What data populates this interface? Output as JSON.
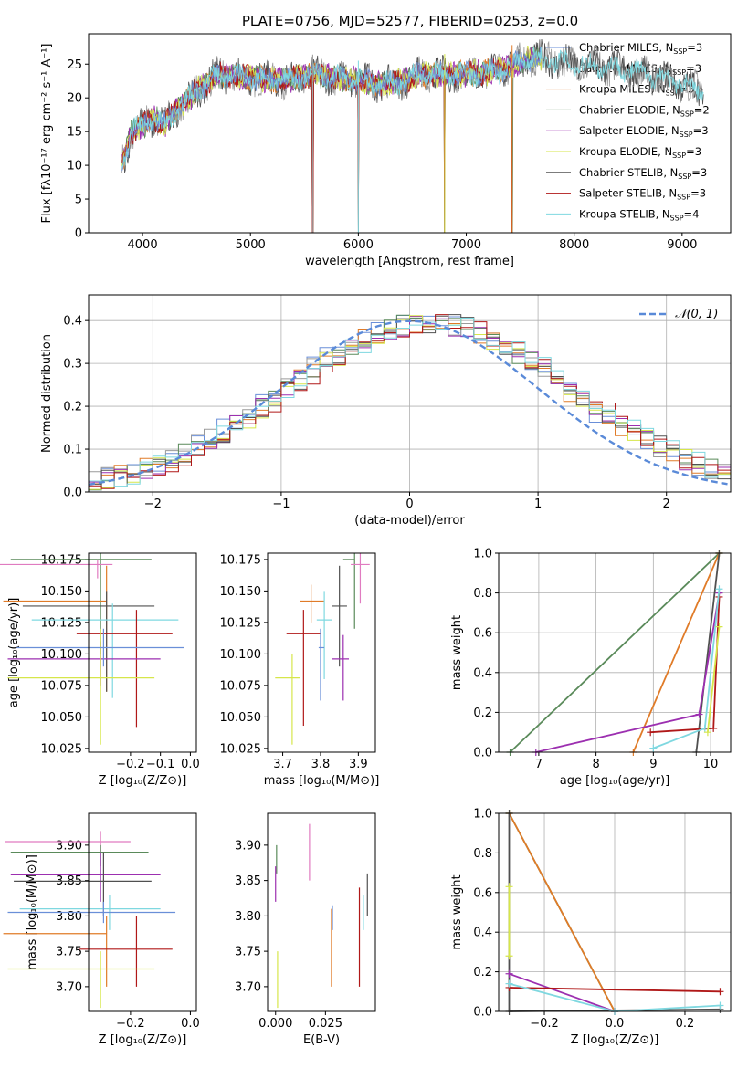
{
  "colors": {
    "Chabrier MILES": "#6a8fd8",
    "Salpeter MILES": "#9a9a9a",
    "Kroupa MILES": "#e07b28",
    "Chabrier ELODIE": "#5a8a5a",
    "Salpeter ELODIE": "#9c2fb0",
    "Kroupa ELODIE": "#d6e64a",
    "Chabrier STELIB": "#505050",
    "Salpeter STELIB": "#b01818",
    "Kroupa STELIB": "#7fd8e0",
    "pink": "#e07bc0",
    "gauss": "#5a8ad8"
  },
  "chart_data": [
    {
      "id": "spectrum",
      "type": "line",
      "title": "PLATE=0756, MJD=52577, FIBERID=0253, z=0.0",
      "xlabel": "wavelength [Angstrom, rest frame]",
      "ylabel": "Flux [fλ10⁻¹⁷ erg cm⁻² s⁻¹ A⁻¹]",
      "xlim": [
        3500,
        9450
      ],
      "ylim": [
        0,
        29.5
      ],
      "xticks": [
        4000,
        5000,
        6000,
        7000,
        8000,
        9000
      ],
      "yticks": [
        0,
        5,
        10,
        15,
        20,
        25
      ],
      "legend_position": "top-right",
      "legend": [
        {
          "base": "Chabrier MILES, N",
          "sub": "SSP",
          "tail": "=3",
          "color": "#6a8fd8"
        },
        {
          "base": "Salpeter MILES, N",
          "sub": "SSP",
          "tail": "=3",
          "color": "#9a9a9a"
        },
        {
          "base": "Kroupa MILES, N",
          "sub": "SSP",
          "tail": "=3",
          "color": "#e07b28"
        },
        {
          "base": "Chabrier ELODIE, N",
          "sub": "SSP",
          "tail": "=2",
          "color": "#5a8a5a"
        },
        {
          "base": "Salpeter ELODIE, N",
          "sub": "SSP",
          "tail": "=3",
          "color": "#9c2fb0"
        },
        {
          "base": "Kroupa ELODIE, N",
          "sub": "SSP",
          "tail": "=3",
          "color": "#d6e64a"
        },
        {
          "base": "Chabrier STELIB, N",
          "sub": "SSP",
          "tail": "=3",
          "color": "#505050"
        },
        {
          "base": "Salpeter STELIB, N",
          "sub": "SSP",
          "tail": "=3",
          "color": "#b01818"
        },
        {
          "base": "Kroupa STELIB, N",
          "sub": "SSP",
          "tail": "=4",
          "color": "#7fd8e0"
        }
      ],
      "continuum": {
        "x": [
          3800,
          3900,
          4000,
          4100,
          4200,
          4300,
          4500,
          4700,
          5000,
          5300,
          5600,
          6000,
          6300,
          6600,
          7000,
          7300,
          7600,
          7800,
          8000,
          8400,
          8800,
          9200
        ],
        "y": [
          10,
          15,
          16,
          17,
          16,
          18,
          21,
          23.5,
          23,
          22.5,
          23.5,
          22.5,
          22,
          23.5,
          23.5,
          24,
          26,
          25.5,
          25,
          24.5,
          23,
          21
        ]
      },
      "dips": [
        {
          "x": 5577,
          "y": 0
        },
        {
          "x": 6000,
          "y": 0
        },
        {
          "x": 6800,
          "y": 0
        },
        {
          "x": 7425,
          "y": 0
        }
      ]
    },
    {
      "id": "residuals",
      "type": "line",
      "xlabel": "(data-model)/error",
      "ylabel": "Normed distribution",
      "xlim": [
        -2.5,
        2.5
      ],
      "ylim": [
        0,
        0.46
      ],
      "xticks": [
        -2,
        -1,
        0,
        1,
        2
      ],
      "yticks": [
        0.0,
        0.1,
        0.2,
        0.3,
        0.4
      ],
      "grid": true,
      "legend_position": "top-right",
      "legend_label": "𝒩(0, 1)",
      "series": [
        {
          "name": "N(0,1)",
          "style": "dashed",
          "color": "#5a8ad8",
          "function": "gaussian",
          "mu": 0,
          "sigma": 1
        }
      ],
      "histogram_bin_width": 0.1
    },
    {
      "id": "age-vs-Z",
      "type": "scatter",
      "xlabel": "Z [log₁₀(Z/Z⊙)]",
      "ylabel": "age  [log₁₀(age/yr)]",
      "xlim": [
        -0.34,
        0.02
      ],
      "ylim": [
        10.022,
        10.18
      ],
      "xticks": [
        -0.2,
        -0.1,
        0.0
      ],
      "xticklabels": [
        "−0.2",
        "−0.1",
        "0.0"
      ],
      "yticks": [
        10.025,
        10.05,
        10.075,
        10.1,
        10.125,
        10.15,
        10.175
      ],
      "points": [
        {
          "color": "#5a8a5a",
          "x": -0.3,
          "y": 10.175,
          "xerr": [
            0.3,
            0.17
          ],
          "yerr": [
            10.1,
            10.18
          ]
        },
        {
          "color": "#e07bc0",
          "x": -0.31,
          "y": 10.171,
          "xerr": [
            0.33,
            0.05
          ],
          "yerr": [
            10.16,
            10.175
          ]
        },
        {
          "color": "#e07b28",
          "x": -0.28,
          "y": 10.142,
          "xerr": [
            0.345,
            0.0
          ],
          "yerr": [
            10.07,
            10.17
          ]
        },
        {
          "color": "#505050",
          "x": -0.28,
          "y": 10.138,
          "xerr": [
            0.28,
            0.16
          ],
          "yerr": [
            10.07,
            10.15
          ]
        },
        {
          "color": "#7fd8e0",
          "x": -0.26,
          "y": 10.127,
          "xerr": [
            0.27,
            0.22
          ],
          "yerr": [
            10.065,
            10.14
          ]
        },
        {
          "color": "#b01818",
          "x": -0.18,
          "y": 10.116,
          "xerr": [
            0.2,
            0.12
          ],
          "yerr": [
            10.042,
            10.135
          ]
        },
        {
          "color": "#9c2fb0",
          "x": -0.3,
          "y": 10.096,
          "xerr": [
            0.31,
            0.2
          ],
          "yerr": [
            10.075,
            10.11
          ]
        },
        {
          "color": "#d6e64a",
          "x": -0.3,
          "y": 10.081,
          "xerr": [
            0.31,
            0.18
          ],
          "yerr": [
            10.028,
            10.12
          ]
        },
        {
          "color": "#6a8fd8",
          "x": -0.29,
          "y": 10.105,
          "xerr": [
            0.29,
            0.27
          ],
          "yerr": [
            10.09,
            10.12
          ]
        }
      ]
    },
    {
      "id": "age-vs-mass",
      "type": "scatter",
      "xlabel": "mass [log₁₀(M/M⊙)]",
      "xlim": [
        3.66,
        3.945
      ],
      "ylim": [
        10.022,
        10.18
      ],
      "xticks": [
        3.7,
        3.8,
        3.9
      ],
      "yticks": [
        10.025,
        10.05,
        10.075,
        10.1,
        10.125,
        10.15,
        10.175
      ],
      "points": [
        {
          "color": "#5a8a5a",
          "x": 3.89,
          "y": 10.175,
          "xerr": [
            3.86,
            3.89
          ],
          "yerr": [
            10.12,
            10.18
          ]
        },
        {
          "color": "#e07bc0",
          "x": 3.905,
          "y": 10.171,
          "xerr": [
            3.88,
            3.93
          ],
          "yerr": [
            10.14,
            10.18
          ]
        },
        {
          "color": "#e07b28",
          "x": 3.775,
          "y": 10.142,
          "xerr": [
            3.745,
            3.81
          ],
          "yerr": [
            10.125,
            10.155
          ]
        },
        {
          "color": "#505050",
          "x": 3.85,
          "y": 10.138,
          "xerr": [
            3.83,
            3.87
          ],
          "yerr": [
            10.09,
            10.17
          ]
        },
        {
          "color": "#7fd8e0",
          "x": 3.81,
          "y": 10.127,
          "xerr": [
            3.79,
            3.83
          ],
          "yerr": [
            10.08,
            10.15
          ]
        },
        {
          "color": "#b01818",
          "x": 3.755,
          "y": 10.116,
          "xerr": [
            3.71,
            3.8
          ],
          "yerr": [
            10.043,
            10.135
          ]
        },
        {
          "color": "#9c2fb0",
          "x": 3.86,
          "y": 10.096,
          "xerr": [
            3.83,
            3.875
          ],
          "yerr": [
            10.063,
            10.115
          ]
        },
        {
          "color": "#d6e64a",
          "x": 3.725,
          "y": 10.081,
          "xerr": [
            3.68,
            3.745
          ],
          "yerr": [
            10.028,
            10.1
          ]
        },
        {
          "color": "#6a8fd8",
          "x": 3.8,
          "y": 10.105,
          "xerr": [
            3.795,
            3.81
          ],
          "yerr": [
            10.063,
            10.12
          ]
        }
      ]
    },
    {
      "id": "mass-weight-vs-age",
      "type": "line",
      "xlabel": "age  [log₁₀(age/yr)]",
      "ylabel": "mass weight",
      "xlim": [
        6.3,
        10.35
      ],
      "ylim": [
        0,
        1.0
      ],
      "xticks": [
        7,
        8,
        9,
        10
      ],
      "yticks": [
        0.0,
        0.2,
        0.4,
        0.6,
        0.8,
        1.0
      ],
      "grid": true,
      "series": [
        {
          "name": "Chabrier ELODIE",
          "color": "#5a8a5a",
          "x": [
            6.5,
            10.15
          ],
          "y": [
            0.0,
            1.0
          ]
        },
        {
          "name": "Kroupa MILES",
          "color": "#e07b28",
          "x": [
            8.65,
            10.15
          ],
          "y": [
            0.0,
            1.0
          ]
        },
        {
          "name": "Chabrier STELIB",
          "color": "#505050",
          "x": [
            9.75,
            10.15
          ],
          "y": [
            0.0,
            1.0
          ]
        },
        {
          "name": "Salpeter ELODIE",
          "color": "#9c2fb0",
          "x": [
            6.95,
            9.8,
            10.15
          ],
          "y": [
            0.0,
            0.19,
            0.8
          ]
        },
        {
          "name": "Salpeter STELIB",
          "color": "#b01818",
          "x": [
            8.95,
            10.05,
            10.15
          ],
          "y": [
            0.1,
            0.12,
            0.78
          ]
        },
        {
          "name": "Kroupa STELIB",
          "color": "#7fd8e0",
          "x": [
            9.0,
            9.9,
            10.15
          ],
          "y": [
            0.02,
            0.12,
            0.82
          ]
        },
        {
          "name": "Kroupa ELODIE",
          "color": "#d6e64a",
          "x": [
            9.95,
            10.15
          ],
          "y": [
            0.1,
            0.63
          ]
        }
      ]
    },
    {
      "id": "mass-vs-Z",
      "type": "scatter",
      "xlabel": "Z [log₁₀(Z/Z⊙)]",
      "ylabel": "mass [log₁₀(M/M⊙)]",
      "xlim": [
        -0.34,
        0.02
      ],
      "ylim": [
        3.665,
        3.945
      ],
      "xticks": [
        -0.2,
        0.0
      ],
      "xticklabels": [
        "−0.2",
        "0.0"
      ],
      "yticks": [
        3.7,
        3.75,
        3.8,
        3.85,
        3.9
      ],
      "points": [
        {
          "color": "#e07bc0",
          "x": -0.3,
          "y": 3.905,
          "xerr": [
            0.32,
            0.1
          ],
          "yerr": [
            3.89,
            3.92
          ]
        },
        {
          "color": "#5a8a5a",
          "x": -0.3,
          "y": 3.89,
          "xerr": [
            0.3,
            0.16
          ],
          "yerr": [
            3.87,
            3.9
          ]
        },
        {
          "color": "#9c2fb0",
          "x": -0.3,
          "y": 3.858,
          "xerr": [
            0.3,
            0.2
          ],
          "yerr": [
            3.82,
            3.89
          ]
        },
        {
          "color": "#505050",
          "x": -0.29,
          "y": 3.849,
          "xerr": [
            0.3,
            0.16
          ],
          "yerr": [
            3.8,
            3.89
          ]
        },
        {
          "color": "#7fd8e0",
          "x": -0.27,
          "y": 3.81,
          "xerr": [
            0.3,
            0.17
          ],
          "yerr": [
            3.78,
            3.83
          ]
        },
        {
          "color": "#6a8fd8",
          "x": -0.29,
          "y": 3.805,
          "xerr": [
            0.32,
            0.24
          ],
          "yerr": [
            3.79,
            3.82
          ]
        },
        {
          "color": "#e07b28",
          "x": -0.28,
          "y": 3.775,
          "xerr": [
            0.345,
            0.0
          ],
          "yerr": [
            3.7,
            3.8
          ]
        },
        {
          "color": "#b01818",
          "x": -0.18,
          "y": 3.753,
          "xerr": [
            0.19,
            0.12
          ],
          "yerr": [
            3.7,
            3.8
          ]
        },
        {
          "color": "#d6e64a",
          "x": -0.3,
          "y": 3.725,
          "xerr": [
            0.31,
            0.18
          ],
          "yerr": [
            3.67,
            3.75
          ]
        }
      ]
    },
    {
      "id": "mass-vs-ebv",
      "type": "scatter",
      "xlabel": "E(B-V)",
      "xlim": [
        -0.004,
        0.05
      ],
      "ylim": [
        3.665,
        3.945
      ],
      "xticks": [
        0.0,
        0.025
      ],
      "xticklabels": [
        "0.000",
        "0.025"
      ],
      "yticks": [
        3.7,
        3.75,
        3.8,
        3.85,
        3.9
      ],
      "points": [
        {
          "color": "#e07bc0",
          "x": 0.017,
          "y": 3.89,
          "yerr": [
            3.85,
            3.93
          ]
        },
        {
          "color": "#5a8a5a",
          "x": 0.0005,
          "y": 3.88,
          "yerr": [
            3.86,
            3.9
          ]
        },
        {
          "color": "#9c2fb0",
          "x": 0.0,
          "y": 3.85,
          "yerr": [
            3.82,
            3.87
          ]
        },
        {
          "color": "#505050",
          "x": 0.046,
          "y": 3.83,
          "yerr": [
            3.8,
            3.86
          ]
        },
        {
          "color": "#7fd8e0",
          "x": 0.044,
          "y": 3.8,
          "yerr": [
            3.78,
            3.83
          ]
        },
        {
          "color": "#6a8fd8",
          "x": 0.0285,
          "y": 3.795,
          "yerr": [
            3.78,
            3.815
          ]
        },
        {
          "color": "#e07b28",
          "x": 0.028,
          "y": 3.76,
          "yerr": [
            3.7,
            3.81
          ]
        },
        {
          "color": "#b01818",
          "x": 0.042,
          "y": 3.77,
          "yerr": [
            3.7,
            3.84
          ]
        },
        {
          "color": "#d6e64a",
          "x": 0.001,
          "y": 3.71,
          "yerr": [
            3.67,
            3.75
          ]
        }
      ]
    },
    {
      "id": "mass-weight-vs-Z",
      "type": "line",
      "xlabel": "Z [log₁₀(Z/Z⊙)]",
      "ylabel": "mass weight",
      "xlim": [
        -0.33,
        0.33
      ],
      "ylim": [
        0,
        1.0
      ],
      "xticks": [
        -0.2,
        0.0,
        0.2
      ],
      "xticklabels": [
        "−0.2",
        "0.0",
        "0.2"
      ],
      "yticks": [
        0.0,
        0.2,
        0.4,
        0.6,
        0.8,
        1.0
      ],
      "grid": true,
      "series": [
        {
          "name": "Chabrier ELODIE",
          "color": "#5a8a5a",
          "x": [
            -0.3,
            0.0
          ],
          "y": [
            1.0,
            0.0
          ]
        },
        {
          "name": "Kroupa MILES",
          "color": "#e07b28",
          "x": [
            -0.3,
            0.0
          ],
          "y": [
            1.0,
            0.0
          ]
        },
        {
          "name": "Chabrier STELIB",
          "color": "#505050",
          "x": [
            -0.3,
            -0.3,
            0.3
          ],
          "y": [
            1.0,
            0.0,
            0.01
          ]
        },
        {
          "name": "Salpeter ELODIE",
          "color": "#9c2fb0",
          "x": [
            -0.3,
            0.0
          ],
          "y": [
            0.19,
            0.0
          ]
        },
        {
          "name": "Salpeter STELIB",
          "color": "#b01818",
          "x": [
            -0.3,
            0.3
          ],
          "y": [
            0.12,
            0.1
          ]
        },
        {
          "name": "Kroupa STELIB",
          "color": "#7fd8e0",
          "x": [
            -0.3,
            0.0,
            0.3
          ],
          "y": [
            0.14,
            0.0,
            0.03
          ]
        },
        {
          "name": "Kroupa ELODIE",
          "color": "#d6e64a",
          "x": [
            -0.3,
            -0.3
          ],
          "y": [
            0.63,
            0.28
          ]
        }
      ]
    }
  ]
}
